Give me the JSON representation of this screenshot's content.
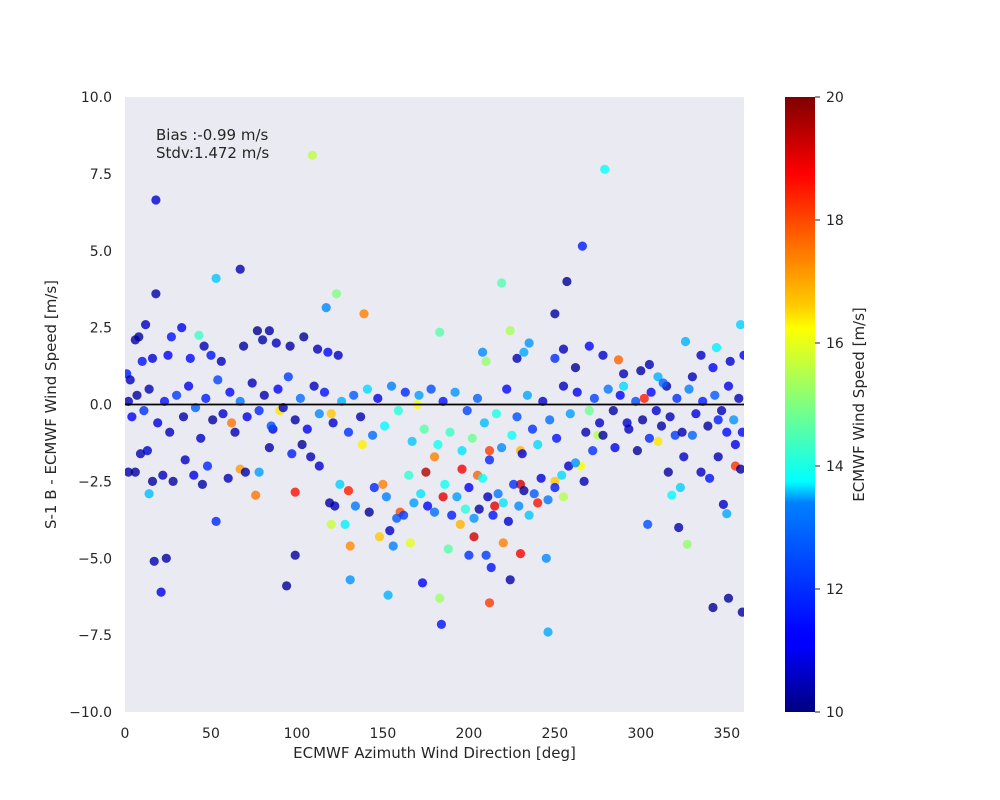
{
  "chart_data": {
    "type": "scatter",
    "title": "",
    "xlabel": "ECMWF Azimuth Wind Direction [deg]",
    "ylabel": "S-1 B - ECMWF Wind Speed [m/s]",
    "xlim": [
      0,
      360
    ],
    "ylim": [
      -10,
      10
    ],
    "x_ticks": [
      "0",
      "50",
      "100",
      "150",
      "200",
      "250",
      "300",
      "350"
    ],
    "y_ticks": [
      "10.0",
      "7.5",
      "5.0",
      "2.5",
      "0.0",
      "−2.5",
      "−5.0",
      "−7.5",
      "−10.0"
    ],
    "grid": false,
    "background": "#eaeaf2",
    "reference_line_y": 0,
    "annotation": [
      "Bias :-0.99 m/s",
      "Stdv:1.472 m/s"
    ],
    "colorbar": {
      "label": "ECMWF Wind Speed [m/s]",
      "colormap": "jet",
      "range": [
        10,
        20
      ],
      "ticks": [
        "10",
        "12",
        "14",
        "16",
        "18",
        "20"
      ]
    },
    "color_variable": "ECMWF Wind Speed [m/s]",
    "points": [
      [
        109,
        8.1,
        15.6
      ],
      [
        279,
        7.65,
        13.8
      ],
      [
        18,
        6.65,
        10.8
      ],
      [
        266,
        5.15,
        11.5
      ],
      [
        67,
        4.4,
        10.5
      ],
      [
        53,
        4.1,
        13.2
      ],
      [
        257,
        4.0,
        10.2
      ],
      [
        18,
        3.6,
        10.4
      ],
      [
        219,
        3.95,
        14.5
      ],
      [
        123,
        3.6,
        15.0
      ],
      [
        139,
        2.95,
        17.5
      ],
      [
        117,
        3.15,
        12.6
      ],
      [
        250,
        2.95,
        10.3
      ],
      [
        358,
        2.6,
        13.3
      ],
      [
        43,
        2.25,
        14.3
      ],
      [
        224,
        2.4,
        15.4
      ],
      [
        183,
        2.35,
        14.6
      ],
      [
        326,
        2.05,
        13.0
      ],
      [
        344,
        1.85,
        13.6
      ],
      [
        287,
        1.45,
        17.8
      ],
      [
        302,
        0.2,
        18.5
      ],
      [
        21,
        -6.1,
        11.0
      ],
      [
        17,
        -5.1,
        10.5
      ],
      [
        24,
        -5.0,
        10.3
      ],
      [
        94,
        -5.9,
        10.2
      ],
      [
        99,
        -4.9,
        10.3
      ],
      [
        131,
        -5.7,
        12.7
      ],
      [
        153,
        -6.2,
        13.0
      ],
      [
        173,
        -5.8,
        11.2
      ],
      [
        183,
        -6.3,
        15.3
      ],
      [
        184,
        -7.15,
        11.4
      ],
      [
        212,
        -6.45,
        18.2
      ],
      [
        246,
        -7.4,
        12.9
      ],
      [
        245,
        -5.0,
        12.6
      ],
      [
        342,
        -6.6,
        10.2
      ],
      [
        351,
        -6.3,
        10.2
      ],
      [
        359,
        -6.75,
        10.3
      ],
      [
        327,
        -4.55,
        15.2
      ],
      [
        350,
        -3.55,
        12.9
      ],
      [
        348,
        -3.25,
        10.7
      ],
      [
        322,
        -4.0,
        10.5
      ],
      [
        304,
        -3.9,
        12.0
      ],
      [
        76,
        -2.95,
        17.6
      ],
      [
        67,
        -2.1,
        17.2
      ],
      [
        99,
        -2.85,
        18.6
      ],
      [
        53,
        -3.8,
        11.6
      ],
      [
        14,
        -2.9,
        13.1
      ],
      [
        230,
        -4.85,
        18.8
      ],
      [
        220,
        -4.5,
        17.5
      ],
      [
        203,
        -4.3,
        19.2
      ],
      [
        200,
        -4.9,
        11.7
      ],
      [
        188,
        -4.7,
        14.6
      ],
      [
        166,
        -4.5,
        16.0
      ],
      [
        148,
        -4.3,
        16.8
      ],
      [
        131,
        -4.6,
        17.4
      ],
      [
        120,
        -3.9,
        15.7
      ],
      [
        156,
        -4.6,
        12.5
      ],
      [
        213,
        -5.3,
        11.4
      ],
      [
        224,
        -5.7,
        10.4
      ],
      [
        210,
        -4.9,
        11.8
      ],
      [
        130,
        -2.8,
        18.5
      ],
      [
        175,
        -2.2,
        19.5
      ],
      [
        196,
        -2.1,
        18.8
      ],
      [
        212,
        -1.5,
        18.2
      ],
      [
        240,
        -3.2,
        18.6
      ],
      [
        185,
        -3.0,
        19.0
      ],
      [
        160,
        -3.5,
        18.0
      ],
      [
        195,
        -3.9,
        17.0
      ],
      [
        230,
        -2.6,
        19.2
      ],
      [
        150,
        -2.6,
        17.5
      ],
      [
        230,
        -1.5,
        17.0
      ],
      [
        215,
        -3.3,
        19.0
      ],
      [
        205,
        -2.3,
        17.8
      ],
      [
        180,
        -1.7,
        17.5
      ],
      [
        138,
        -1.3,
        16.4
      ],
      [
        265,
        -2.0,
        16.2
      ],
      [
        355,
        -2.0,
        18.3
      ],
      [
        62,
        -0.6,
        17.6
      ],
      [
        90,
        -0.2,
        16.5
      ],
      [
        120,
        -0.3,
        16.8
      ],
      [
        170,
        0.0,
        16.2
      ],
      [
        250,
        -2.5,
        16.8
      ],
      [
        255,
        -3.0,
        15.5
      ],
      [
        275,
        -1.0,
        15.5
      ],
      [
        310,
        -1.2,
        16.5
      ],
      [
        323,
        -2.7,
        13.3
      ],
      [
        318,
        -2.95,
        13.7
      ],
      [
        270,
        -0.2,
        14.8
      ],
      [
        290,
        0.6,
        13.4
      ],
      [
        310,
        0.9,
        13.0
      ],
      [
        232,
        1.7,
        12.9
      ],
      [
        208,
        1.7,
        12.6
      ],
      [
        210,
        1.4,
        15.2
      ],
      [
        235,
        2.0,
        12.7
      ],
      [
        250,
        1.5,
        11.7
      ],
      [
        270,
        1.9,
        11.3
      ],
      [
        278,
        1.6,
        10.8
      ],
      [
        262,
        1.2,
        10.2
      ],
      [
        255,
        1.8,
        10.6
      ],
      [
        228,
        1.5,
        10.5
      ],
      [
        290,
        1.0,
        10.6
      ],
      [
        300,
        1.1,
        10.3
      ],
      [
        305,
        1.3,
        10.5
      ],
      [
        315,
        0.6,
        10.4
      ],
      [
        330,
        0.9,
        10.5
      ],
      [
        335,
        1.6,
        10.7
      ],
      [
        342,
        1.2,
        11.2
      ],
      [
        352,
        1.4,
        10.8
      ],
      [
        360,
        1.6,
        11.2
      ],
      [
        320,
        -1.0,
        11.8
      ],
      [
        335,
        -2.2,
        10.7
      ],
      [
        340,
        -2.4,
        11.4
      ],
      [
        355,
        -1.3,
        11.0
      ],
      [
        358,
        -2.1,
        10.3
      ],
      [
        345,
        -1.7,
        10.5
      ],
      [
        350,
        -0.9,
        11.3
      ],
      [
        1,
        1.0,
        11.5
      ],
      [
        3,
        0.8,
        10.6
      ],
      [
        6,
        2.1,
        10.4
      ],
      [
        8,
        2.2,
        10.3
      ],
      [
        12,
        2.6,
        10.6
      ],
      [
        10,
        1.4,
        11.4
      ],
      [
        16,
        1.5,
        10.9
      ],
      [
        25,
        1.6,
        11.2
      ],
      [
        33,
        2.5,
        11.1
      ],
      [
        27,
        2.2,
        11.4
      ],
      [
        38,
        1.5,
        11.3
      ],
      [
        46,
        1.9,
        10.5
      ],
      [
        50,
        1.6,
        11.4
      ],
      [
        56,
        1.4,
        10.6
      ],
      [
        69,
        1.9,
        10.3
      ],
      [
        77,
        2.4,
        10.1
      ],
      [
        80,
        2.1,
        10.4
      ],
      [
        84,
        2.4,
        10.4
      ],
      [
        88,
        2.0,
        10.6
      ],
      [
        96,
        1.9,
        10.3
      ],
      [
        104,
        2.2,
        10.2
      ],
      [
        112,
        1.8,
        10.5
      ],
      [
        118,
        1.7,
        11.3
      ],
      [
        124,
        1.6,
        10.7
      ],
      [
        2,
        -2.2,
        10.4
      ],
      [
        6,
        -2.2,
        10.3
      ],
      [
        9,
        -1.6,
        10.5
      ],
      [
        13,
        -1.5,
        10.8
      ],
      [
        16,
        -2.5,
        10.3
      ],
      [
        22,
        -2.3,
        10.6
      ],
      [
        28,
        -2.5,
        10.3
      ],
      [
        35,
        -1.8,
        10.7
      ],
      [
        40,
        -2.3,
        11.0
      ],
      [
        45,
        -2.6,
        10.4
      ],
      [
        48,
        -2.0,
        11.6
      ],
      [
        60,
        -2.4,
        10.5
      ],
      [
        70,
        -2.2,
        10.5
      ],
      [
        78,
        -2.2,
        12.8
      ],
      [
        84,
        -1.4,
        10.4
      ],
      [
        86,
        -0.8,
        10.9
      ],
      [
        97,
        -1.6,
        11.5
      ],
      [
        103,
        -1.3,
        10.2
      ],
      [
        108,
        -1.7,
        10.5
      ],
      [
        113,
        -2.0,
        10.8
      ],
      [
        119,
        -3.2,
        10.3
      ],
      [
        122,
        -3.3,
        10.5
      ],
      [
        125,
        -2.6,
        13.3
      ],
      [
        128,
        -3.9,
        13.6
      ],
      [
        134,
        -3.3,
        12.4
      ],
      [
        142,
        -3.5,
        10.2
      ],
      [
        145,
        -2.7,
        11.6
      ],
      [
        152,
        -3.0,
        12.5
      ],
      [
        154,
        -4.1,
        10.7
      ],
      [
        158,
        -3.7,
        12.1
      ],
      [
        162,
        -3.6,
        11.8
      ],
      [
        165,
        -2.3,
        14.2
      ],
      [
        168,
        -3.2,
        12.8
      ],
      [
        172,
        -2.9,
        13.5
      ],
      [
        176,
        -3.3,
        11.3
      ],
      [
        180,
        -3.5,
        12.3
      ],
      [
        186,
        -2.6,
        13.9
      ],
      [
        190,
        -3.6,
        11.5
      ],
      [
        193,
        -3.0,
        12.8
      ],
      [
        198,
        -3.4,
        14.1
      ],
      [
        200,
        -2.7,
        11.2
      ],
      [
        203,
        -3.7,
        12.7
      ],
      [
        206,
        -3.4,
        10.4
      ],
      [
        208,
        -2.4,
        13.8
      ],
      [
        211,
        -3.0,
        10.6
      ],
      [
        214,
        -3.6,
        11.4
      ],
      [
        217,
        -2.9,
        12.4
      ],
      [
        220,
        -3.2,
        13.5
      ],
      [
        223,
        -3.8,
        10.8
      ],
      [
        226,
        -2.6,
        11.7
      ],
      [
        229,
        -3.3,
        12.6
      ],
      [
        232,
        -2.8,
        10.3
      ],
      [
        235,
        -3.6,
        13.2
      ],
      [
        238,
        -2.9,
        12.1
      ],
      [
        242,
        -2.4,
        10.9
      ],
      [
        246,
        -3.1,
        12.4
      ],
      [
        250,
        -2.7,
        11.5
      ],
      [
        254,
        -2.3,
        13.4
      ],
      [
        258,
        -2.0,
        10.7
      ],
      [
        262,
        -1.9,
        12.7
      ],
      [
        267,
        -2.5,
        10.5
      ],
      [
        272,
        -1.5,
        11.7
      ],
      [
        278,
        -1.0,
        10.3
      ],
      [
        285,
        -1.4,
        11.1
      ],
      [
        292,
        -0.6,
        10.8
      ],
      [
        298,
        -1.5,
        10.3
      ],
      [
        305,
        -1.1,
        11.6
      ],
      [
        312,
        -0.7,
        10.4
      ],
      [
        316,
        -2.2,
        10.3
      ],
      [
        325,
        -1.7,
        10.7
      ],
      [
        330,
        -1.0,
        12.2
      ],
      [
        345,
        -0.5,
        11.5
      ],
      [
        2,
        0.1,
        10.6
      ],
      [
        4,
        -0.4,
        11.2
      ],
      [
        7,
        0.3,
        10.3
      ],
      [
        11,
        -0.2,
        11.7
      ],
      [
        14,
        0.5,
        10.5
      ],
      [
        19,
        -0.6,
        10.9
      ],
      [
        23,
        0.1,
        11.4
      ],
      [
        26,
        -0.9,
        10.6
      ],
      [
        30,
        0.3,
        11.8
      ],
      [
        34,
        -0.4,
        10.4
      ],
      [
        37,
        0.6,
        11.1
      ],
      [
        41,
        -0.1,
        12.2
      ],
      [
        44,
        -1.1,
        10.7
      ],
      [
        47,
        0.2,
        11.5
      ],
      [
        51,
        -0.5,
        10.3
      ],
      [
        54,
        0.8,
        11.9
      ],
      [
        57,
        -0.3,
        10.8
      ],
      [
        61,
        0.4,
        11.3
      ],
      [
        64,
        -0.9,
        10.5
      ],
      [
        67,
        0.1,
        12.4
      ],
      [
        71,
        -0.4,
        11.0
      ],
      [
        74,
        0.7,
        10.6
      ],
      [
        78,
        -0.2,
        11.6
      ],
      [
        81,
        0.3,
        10.4
      ],
      [
        85,
        -0.7,
        12.0
      ],
      [
        89,
        0.5,
        11.2
      ],
      [
        92,
        -0.1,
        10.7
      ],
      [
        95,
        0.9,
        11.8
      ],
      [
        99,
        -0.5,
        10.4
      ],
      [
        102,
        0.2,
        12.3
      ],
      [
        106,
        -0.8,
        11.1
      ],
      [
        110,
        0.6,
        10.6
      ],
      [
        113,
        -0.3,
        12.6
      ],
      [
        116,
        0.4,
        11.4
      ],
      [
        121,
        -0.6,
        10.8
      ],
      [
        126,
        0.1,
        13.0
      ],
      [
        130,
        -0.9,
        11.7
      ],
      [
        133,
        0.3,
        12.1
      ],
      [
        137,
        -0.4,
        10.5
      ],
      [
        141,
        0.5,
        13.4
      ],
      [
        144,
        -1.0,
        12.3
      ],
      [
        147,
        0.2,
        11.0
      ],
      [
        151,
        -0.7,
        13.7
      ],
      [
        155,
        0.6,
        12.5
      ],
      [
        159,
        -0.2,
        14.1
      ],
      [
        163,
        0.4,
        11.6
      ],
      [
        167,
        -1.2,
        13.2
      ],
      [
        171,
        0.3,
        12.8
      ],
      [
        174,
        -0.8,
        14.6
      ],
      [
        178,
        0.5,
        12.0
      ],
      [
        182,
        -1.3,
        13.9
      ],
      [
        185,
        0.1,
        11.4
      ],
      [
        189,
        -0.9,
        14.3
      ],
      [
        192,
        0.4,
        12.7
      ],
      [
        196,
        -1.5,
        13.5
      ],
      [
        199,
        -0.2,
        11.9
      ],
      [
        202,
        -1.1,
        14.8
      ],
      [
        205,
        0.2,
        12.2
      ],
      [
        209,
        -0.6,
        13.1
      ],
      [
        212,
        -1.8,
        11.6
      ],
      [
        216,
        -0.3,
        14.0
      ],
      [
        219,
        -1.4,
        12.6
      ],
      [
        222,
        0.5,
        11.3
      ],
      [
        225,
        -1.0,
        13.8
      ],
      [
        228,
        -0.4,
        12.0
      ],
      [
        231,
        -1.6,
        10.9
      ],
      [
        234,
        0.3,
        12.9
      ],
      [
        237,
        -0.8,
        11.7
      ],
      [
        240,
        -1.3,
        13.4
      ],
      [
        243,
        0.1,
        10.8
      ],
      [
        247,
        -0.5,
        12.3
      ],
      [
        251,
        -1.1,
        11.4
      ],
      [
        255,
        0.6,
        10.6
      ],
      [
        259,
        -0.3,
        12.8
      ],
      [
        263,
        0.4,
        11.1
      ],
      [
        268,
        -0.9,
        10.5
      ],
      [
        273,
        0.2,
        11.9
      ],
      [
        276,
        -0.6,
        10.7
      ],
      [
        281,
        0.5,
        12.4
      ],
      [
        284,
        -0.2,
        10.4
      ],
      [
        288,
        0.3,
        11.2
      ],
      [
        293,
        -0.8,
        10.6
      ],
      [
        297,
        0.1,
        12.0
      ],
      [
        301,
        -0.5,
        10.3
      ],
      [
        306,
        0.4,
        11.3
      ],
      [
        309,
        -0.2,
        10.8
      ],
      [
        313,
        0.7,
        12.2
      ],
      [
        317,
        -0.4,
        10.5
      ],
      [
        321,
        0.2,
        11.7
      ],
      [
        324,
        -0.9,
        10.4
      ],
      [
        328,
        0.5,
        12.5
      ],
      [
        332,
        -0.3,
        10.9
      ],
      [
        336,
        0.1,
        11.5
      ],
      [
        339,
        -0.7,
        10.3
      ],
      [
        343,
        0.3,
        12.1
      ],
      [
        347,
        -0.2,
        10.6
      ],
      [
        351,
        0.6,
        11.0
      ],
      [
        354,
        -0.5,
        12.7
      ],
      [
        357,
        0.2,
        10.5
      ],
      [
        359,
        -0.9,
        11.3
      ]
    ]
  }
}
